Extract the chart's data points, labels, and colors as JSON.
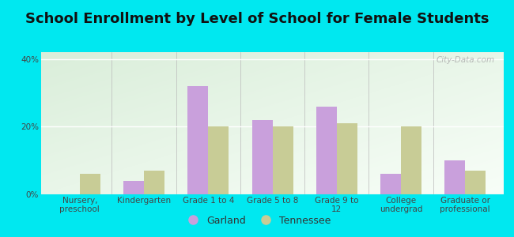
{
  "title": "School Enrollment by Level of School for Female Students",
  "categories": [
    "Nursery,\npreschool",
    "Kindergarten",
    "Grade 1 to 4",
    "Grade 5 to 8",
    "Grade 9 to\n12",
    "College\nundergrad",
    "Graduate or\nprofessional"
  ],
  "garland": [
    0,
    4,
    32,
    22,
    26,
    6,
    10
  ],
  "tennessee": [
    6,
    7,
    20,
    20,
    21,
    20,
    7
  ],
  "garland_color": "#c9a0dc",
  "tennessee_color": "#c8cc96",
  "background_color": "#00e8f0",
  "plot_bg_top_left": "#daeeda",
  "plot_bg_bottom_right": "#f8fef8",
  "ylim": [
    0,
    42
  ],
  "yticks": [
    0,
    20,
    40
  ],
  "ytick_labels": [
    "0%",
    "20%",
    "40%"
  ],
  "bar_width": 0.32,
  "title_fontsize": 13,
  "tick_fontsize": 7.5,
  "legend_fontsize": 9,
  "watermark": "City-Data.com"
}
